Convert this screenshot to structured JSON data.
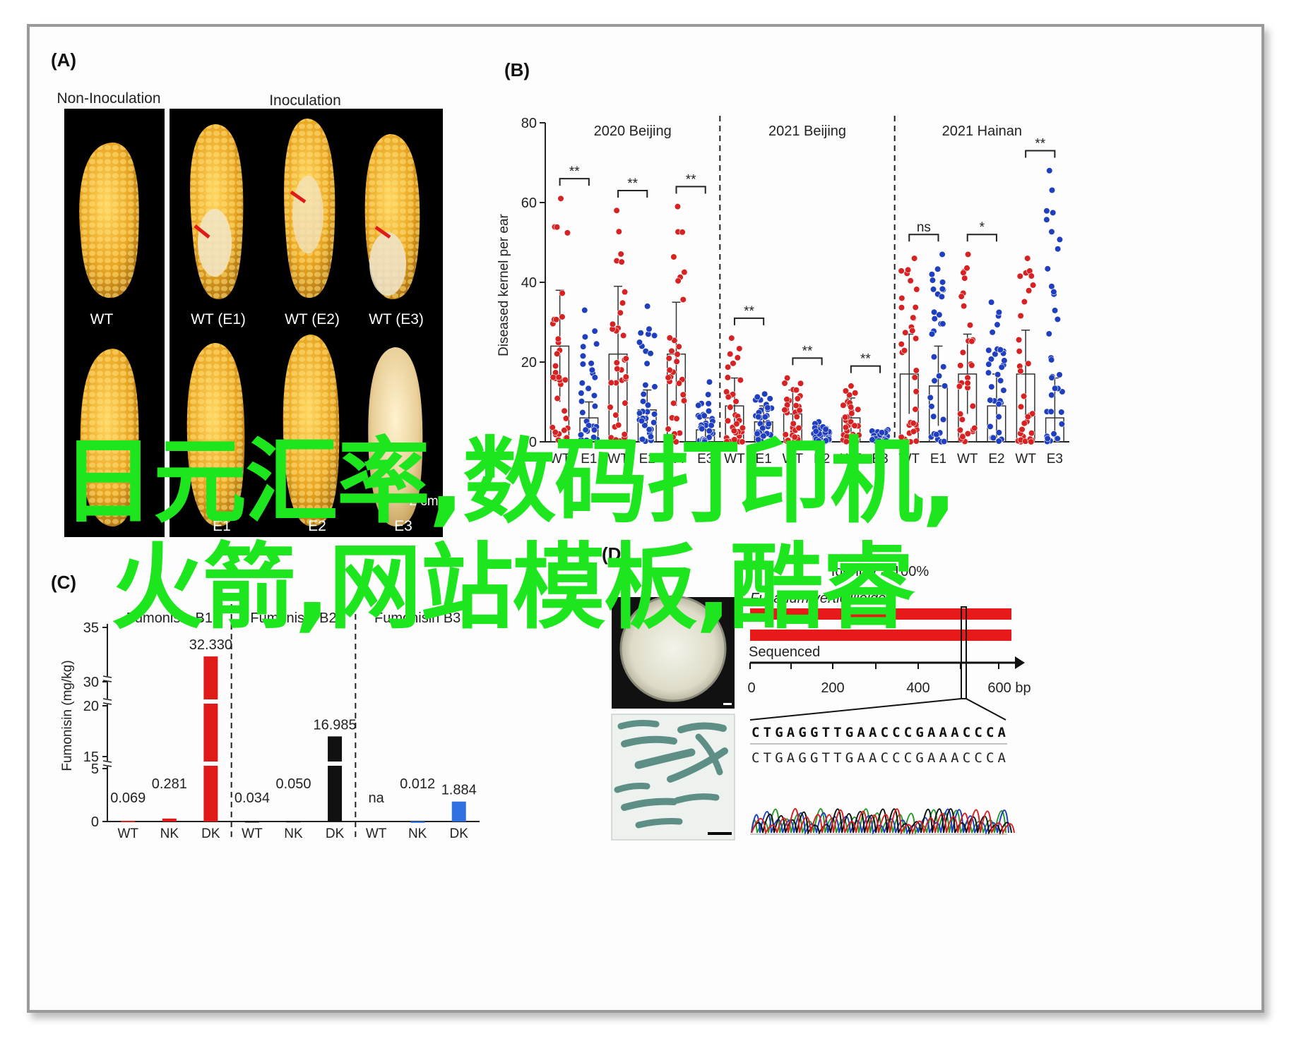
{
  "panels": {
    "A": {
      "label": "(A)",
      "group_left": "Non-Inoculation",
      "group_right": "Inoculation",
      "row1_labels": [
        "WT",
        "WT (E1)",
        "WT (E2)",
        "WT (E3)"
      ],
      "row2_labels": [
        "E1",
        "E2",
        "E3"
      ],
      "scale_note": "2 cm"
    },
    "B": {
      "label": "(B)",
      "sections": [
        "2020 Beijing",
        "2021 Beijing",
        "2021 Hainan"
      ],
      "ylabel": "Diseased kernel per ear",
      "yticks": [
        "0",
        "20",
        "40",
        "60",
        "80"
      ],
      "xticks": [
        "WT",
        "E1",
        "WT",
        "E2",
        "WT",
        "E3",
        "WT",
        "E1",
        "WT",
        "E2",
        "WT",
        "E3",
        "WT",
        "E1",
        "WT",
        "E2",
        "WT",
        "E3"
      ],
      "significance": [
        "**",
        "**",
        "**",
        "**",
        "**",
        "**",
        "ns",
        "*",
        "**"
      ]
    },
    "C": {
      "label": "(C)",
      "sections": [
        "Fumonisin B1",
        "Fumonisin B2",
        "Fumonisin B3"
      ],
      "ylabel": "Fumonisin (mg/kg)",
      "yticks": [
        "0",
        "5",
        "15",
        "20",
        "30",
        "35"
      ],
      "xticks": [
        "WT",
        "NK",
        "DK",
        "WT",
        "NK",
        "DK",
        "WT",
        "NK",
        "DK"
      ],
      "bar_labels": [
        "0.069",
        "0.281",
        "32.330",
        "0.034",
        "0.050",
        "16.985",
        "na",
        "0.012",
        "1.884"
      ]
    },
    "D": {
      "label": "(D)",
      "identity": "Identity = 100%",
      "species": "Fusarium verticillioides",
      "sequenced": "Sequenced",
      "axis_ticks": [
        "0",
        "200",
        "400",
        "600 bp"
      ],
      "sequence_top": "CTGAGGTTGAACCCGAAACCCA",
      "sequence_bottom": "CTGAGGTTGAACCCGAAACCCA"
    }
  },
  "chart_data": [
    {
      "type": "scatter",
      "panel": "B",
      "ylabel": "Diseased kernel per ear",
      "ylim": [
        0,
        80
      ],
      "categories": [
        "WT",
        "E1",
        "WT",
        "E2",
        "WT",
        "E3",
        "WT",
        "E1",
        "WT",
        "E2",
        "WT",
        "E3",
        "WT",
        "E1",
        "WT",
        "E2",
        "WT",
        "E3"
      ],
      "groups": [
        "2020 Beijing",
        "2020 Beijing",
        "2020 Beijing",
        "2020 Beijing",
        "2020 Beijing",
        "2020 Beijing",
        "2021 Beijing",
        "2021 Beijing",
        "2021 Beijing",
        "2021 Beijing",
        "2021 Beijing",
        "2021 Beijing",
        "2021 Hainan",
        "2021 Hainan",
        "2021 Hainan",
        "2021 Hainan",
        "2021 Hainan",
        "2021 Hainan"
      ],
      "means": [
        24,
        6,
        22,
        8,
        22,
        3,
        9,
        5,
        7,
        2,
        6,
        1,
        17,
        14,
        17,
        9,
        17,
        6
      ],
      "sd": [
        14,
        4,
        17,
        5,
        13,
        3,
        7,
        4,
        6,
        2,
        5,
        1,
        10,
        10,
        10,
        8,
        11,
        10
      ],
      "max_points": [
        61,
        33,
        58,
        34,
        59,
        15,
        26,
        12,
        16,
        5,
        14,
        3,
        46,
        47,
        47,
        35,
        46,
        68
      ],
      "significance": [
        {
          "group": "2020 Beijing",
          "pair": "WT-E1",
          "label": "**"
        },
        {
          "group": "2020 Beijing",
          "pair": "WT-E2",
          "label": "**"
        },
        {
          "group": "2020 Beijing",
          "pair": "WT-E3",
          "label": "**"
        },
        {
          "group": "2021 Beijing",
          "pair": "WT-E1",
          "label": "**"
        },
        {
          "group": "2021 Beijing",
          "pair": "WT-E2",
          "label": "**"
        },
        {
          "group": "2021 Beijing",
          "pair": "WT-E3",
          "label": "**"
        },
        {
          "group": "2021 Hainan",
          "pair": "WT-E1",
          "label": "ns"
        },
        {
          "group": "2021 Hainan",
          "pair": "WT-E2",
          "label": "*"
        },
        {
          "group": "2021 Hainan",
          "pair": "WT-E3",
          "label": "**"
        }
      ],
      "colors": {
        "WT": "#d62222",
        "mutant": "#1f3fbf"
      }
    },
    {
      "type": "bar",
      "panel": "C",
      "ylabel": "Fumonisin (mg/kg)",
      "categories": [
        "WT",
        "NK",
        "DK",
        "WT",
        "NK",
        "DK",
        "WT",
        "NK",
        "DK"
      ],
      "groups": [
        "Fumonisin B1",
        "Fumonisin B1",
        "Fumonisin B1",
        "Fumonisin B2",
        "Fumonisin B2",
        "Fumonisin B2",
        "Fumonisin B3",
        "Fumonisin B3",
        "Fumonisin B3"
      ],
      "values": [
        0.069,
        0.281,
        32.33,
        0.034,
        0.05,
        16.985,
        null,
        0.012,
        1.884
      ],
      "colors": [
        "#e01919",
        "#e01919",
        "#e01919",
        "#111111",
        "#111111",
        "#111111",
        "#2f6fe0",
        "#2f6fe0",
        "#2f6fe0"
      ]
    }
  ],
  "overlay": {
    "line1": "日元汇率,数码打印机,",
    "line2": "火箭,网站模板,酷睿"
  }
}
